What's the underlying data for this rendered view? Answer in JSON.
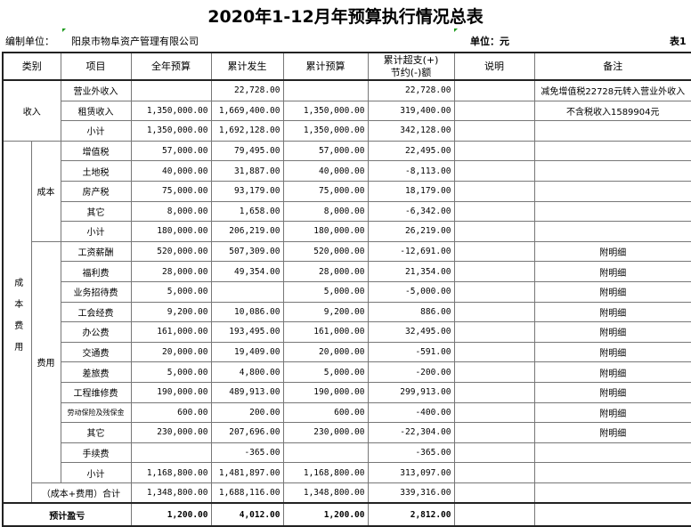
{
  "title": "2020年1-12月年预算执行情况总表",
  "meta": {
    "unit_label": "编制单位：",
    "company": "阳泉市物阜资产管理有限公司",
    "currency": "单位：元",
    "table_no": "表1"
  },
  "headers": [
    "类别",
    "项目",
    "全年预算",
    "累计发生",
    "累计预算",
    "累计超支(+)\n节约(-)额",
    "说明",
    "备注"
  ],
  "income": {
    "category": "收入",
    "rows": [
      {
        "item": "营业外收入",
        "budget": "",
        "actual": "22,728.00",
        "cum_budget": "",
        "diff": "22,728.00",
        "desc": "",
        "note": "减免增值税22728元转入营业外收入"
      },
      {
        "item": "租赁收入",
        "budget": "1,350,000.00",
        "actual": "1,669,400.00",
        "cum_budget": "1,350,000.00",
        "diff": "319,400.00",
        "desc": "",
        "note": "不含税收入1589904元"
      },
      {
        "item": "小计",
        "budget": "1,350,000.00",
        "actual": "1,692,128.00",
        "cum_budget": "1,350,000.00",
        "diff": "342,128.00",
        "desc": "",
        "note": ""
      }
    ]
  },
  "cost_expense": {
    "category": "成本费用",
    "category_chars": [
      "成",
      "本",
      "费",
      "用"
    ],
    "cost": {
      "label": "成本",
      "rows": [
        {
          "item": "增值税",
          "budget": "57,000.00",
          "actual": "79,495.00",
          "cum_budget": "57,000.00",
          "diff": "22,495.00",
          "desc": "",
          "note": ""
        },
        {
          "item": "土地税",
          "budget": "40,000.00",
          "actual": "31,887.00",
          "cum_budget": "40,000.00",
          "diff": "-8,113.00",
          "desc": "",
          "note": ""
        },
        {
          "item": "房产税",
          "budget": "75,000.00",
          "actual": "93,179.00",
          "cum_budget": "75,000.00",
          "diff": "18,179.00",
          "desc": "",
          "note": ""
        },
        {
          "item": "其它",
          "budget": "8,000.00",
          "actual": "1,658.00",
          "cum_budget": "8,000.00",
          "diff": "-6,342.00",
          "desc": "",
          "note": ""
        },
        {
          "item": "小计",
          "budget": "180,000.00",
          "actual": "206,219.00",
          "cum_budget": "180,000.00",
          "diff": "26,219.00",
          "desc": "",
          "note": ""
        }
      ]
    },
    "expense": {
      "label": "费用",
      "rows": [
        {
          "item": "工资薪酬",
          "budget": "520,000.00",
          "actual": "507,309.00",
          "cum_budget": "520,000.00",
          "diff": "-12,691.00",
          "desc": "",
          "note": "附明细"
        },
        {
          "item": "福利费",
          "budget": "28,000.00",
          "actual": "49,354.00",
          "cum_budget": "28,000.00",
          "diff": "21,354.00",
          "desc": "",
          "note": "附明细"
        },
        {
          "item": "业务招待费",
          "budget": "5,000.00",
          "actual": "",
          "cum_budget": "5,000.00",
          "diff": "-5,000.00",
          "desc": "",
          "note": "附明细"
        },
        {
          "item": "工会经费",
          "budget": "9,200.00",
          "actual": "10,086.00",
          "cum_budget": "9,200.00",
          "diff": "886.00",
          "desc": "",
          "note": "附明细"
        },
        {
          "item": "办公费",
          "budget": "161,000.00",
          "actual": "193,495.00",
          "cum_budget": "161,000.00",
          "diff": "32,495.00",
          "desc": "",
          "note": "附明细"
        },
        {
          "item": "交通费",
          "budget": "20,000.00",
          "actual": "19,409.00",
          "cum_budget": "20,000.00",
          "diff": "-591.00",
          "desc": "",
          "note": "附明细"
        },
        {
          "item": "差旅费",
          "budget": "5,000.00",
          "actual": "4,800.00",
          "cum_budget": "5,000.00",
          "diff": "-200.00",
          "desc": "",
          "note": "附明细"
        },
        {
          "item": "工程维修费",
          "budget": "190,000.00",
          "actual": "489,913.00",
          "cum_budget": "190,000.00",
          "diff": "299,913.00",
          "desc": "",
          "note": "附明细"
        },
        {
          "item": "劳动保险及残保金",
          "budget": "600.00",
          "actual": "200.00",
          "cum_budget": "600.00",
          "diff": "-400.00",
          "desc": "",
          "note": "附明细"
        },
        {
          "item": "其它",
          "budget": "230,000.00",
          "actual": "207,696.00",
          "cum_budget": "230,000.00",
          "diff": "-22,304.00",
          "desc": "",
          "note": "附明细"
        },
        {
          "item": "手续费",
          "budget": "",
          "actual": "-365.00",
          "cum_budget": "",
          "diff": "-365.00",
          "desc": "",
          "note": ""
        },
        {
          "item": "小计",
          "budget": "1,168,800.00",
          "actual": "1,481,897.00",
          "cum_budget": "1,168,800.00",
          "diff": "313,097.00",
          "desc": "",
          "note": ""
        }
      ]
    },
    "total": {
      "item": "（成本+费用）合计",
      "budget": "1,348,800.00",
      "actual": "1,688,116.00",
      "cum_budget": "1,348,800.00",
      "diff": "339,316.00",
      "desc": "",
      "note": ""
    }
  },
  "profit": {
    "item": "预计盈亏",
    "budget": "1,200.00",
    "actual": "4,012.00",
    "cum_budget": "1,200.00",
    "diff": "2,812.00",
    "desc": "",
    "note": ""
  },
  "colors": {
    "border": "#777777",
    "comment_marker": "#1a9a1a"
  }
}
